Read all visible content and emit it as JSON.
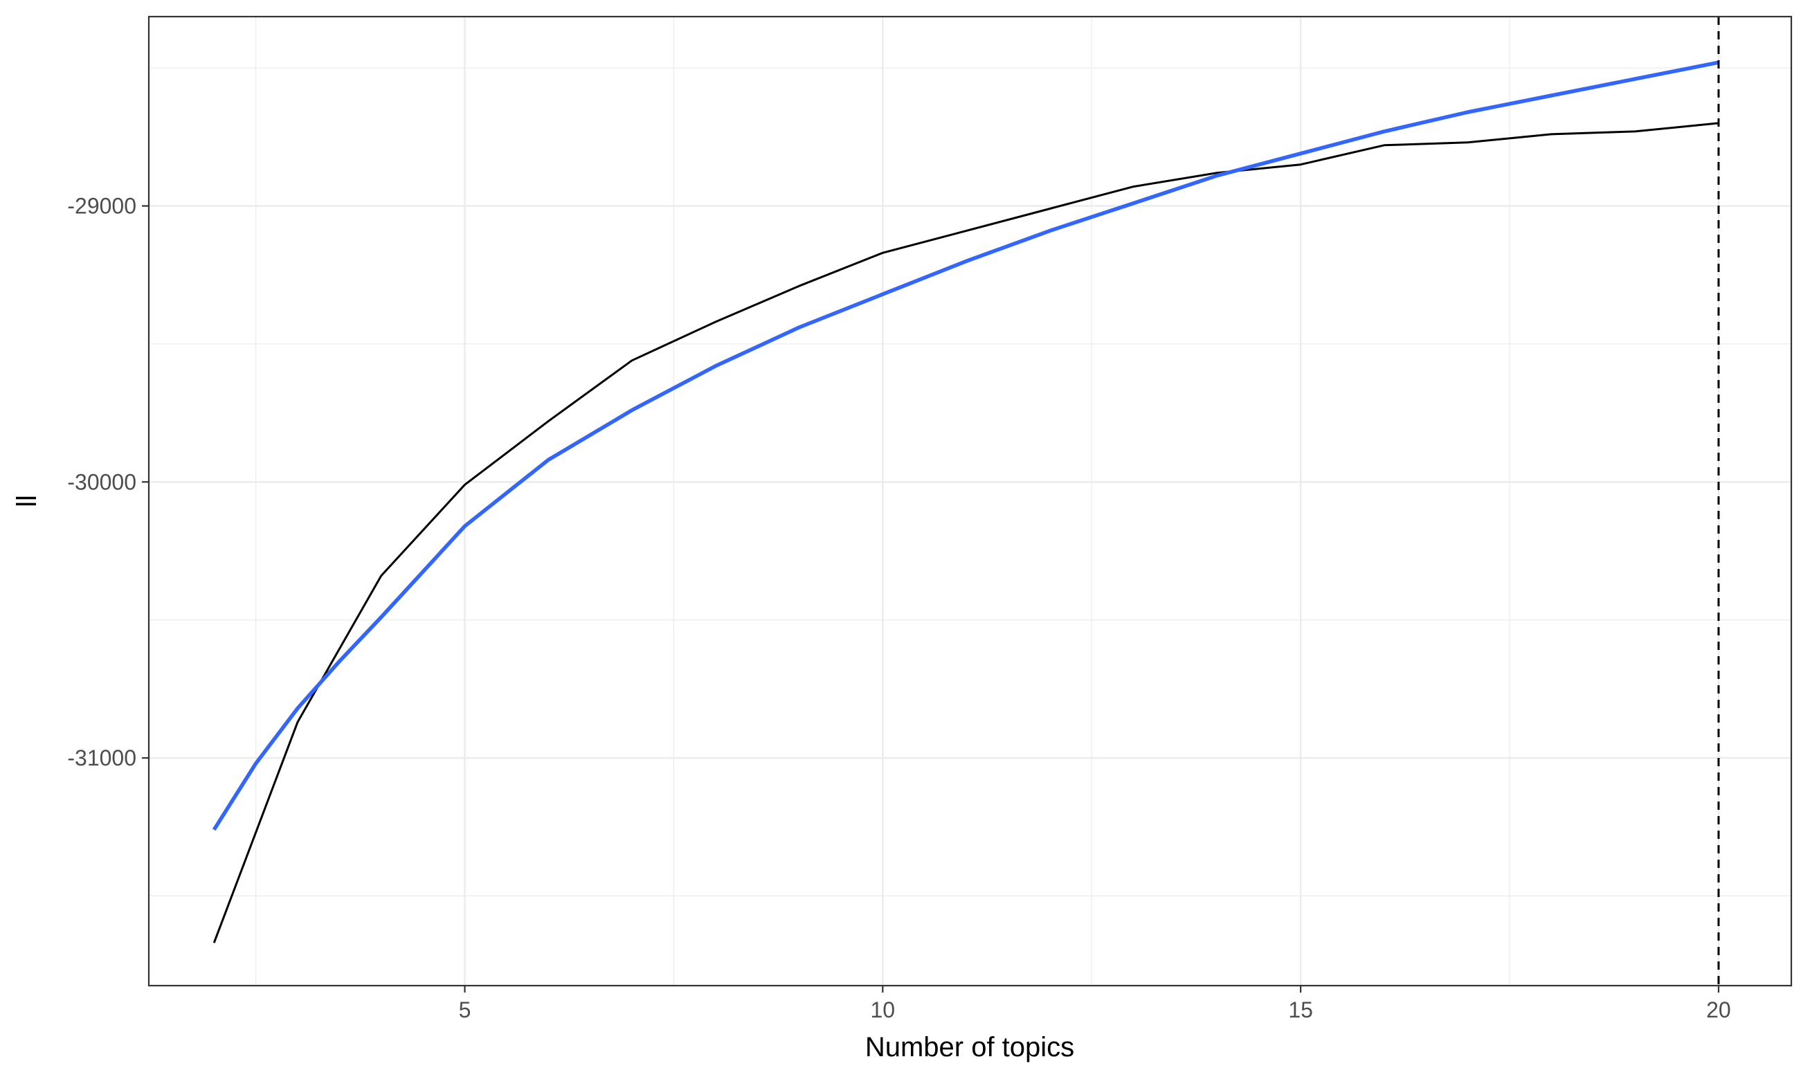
{
  "chart_data": {
    "type": "line",
    "title": "",
    "xlabel": "Number of topics",
    "ylabel": "ll",
    "xlim": [
      1.22,
      20.87
    ],
    "ylim": [
      -31825,
      -28314
    ],
    "x_ticks": [
      5,
      10,
      15,
      20
    ],
    "x_tick_labels": [
      "5",
      "10",
      "15",
      "20"
    ],
    "y_ticks": [
      -31000,
      -30000,
      -29000
    ],
    "y_tick_labels": [
      "-31000",
      "-30000",
      "-29000"
    ],
    "grid": true,
    "legend": "none",
    "series": [
      {
        "x": [
          2,
          3,
          4,
          5,
          6,
          7,
          8,
          9,
          10,
          11,
          12,
          13,
          14,
          15,
          16,
          17,
          18,
          19,
          20
        ],
        "values": [
          -31670,
          -30870,
          -30340,
          -30010,
          -29780,
          -29560,
          -29420,
          -29290,
          -29170,
          -29090,
          -29010,
          -28930,
          -28880,
          -28850,
          -28780,
          -28770,
          -28740,
          -28730,
          -28700
        ],
        "color": "#000000"
      },
      {
        "x": [
          2,
          2.5,
          3,
          3.5,
          4,
          5,
          6,
          7,
          8,
          9,
          10,
          11,
          12,
          13,
          14,
          15,
          16,
          17,
          18,
          19,
          20
        ],
        "values": [
          -31260,
          -31020,
          -30820,
          -30650,
          -30490,
          -30160,
          -29920,
          -29740,
          -29580,
          -29440,
          -29320,
          -29200,
          -29090,
          -28990,
          -28890,
          -28810,
          -28730,
          -28660,
          -28600,
          -28540,
          -28480
        ],
        "color": "#3366FF"
      }
    ],
    "reference_line": {
      "x": 20,
      "style": "dashed",
      "color": "#000000"
    }
  }
}
